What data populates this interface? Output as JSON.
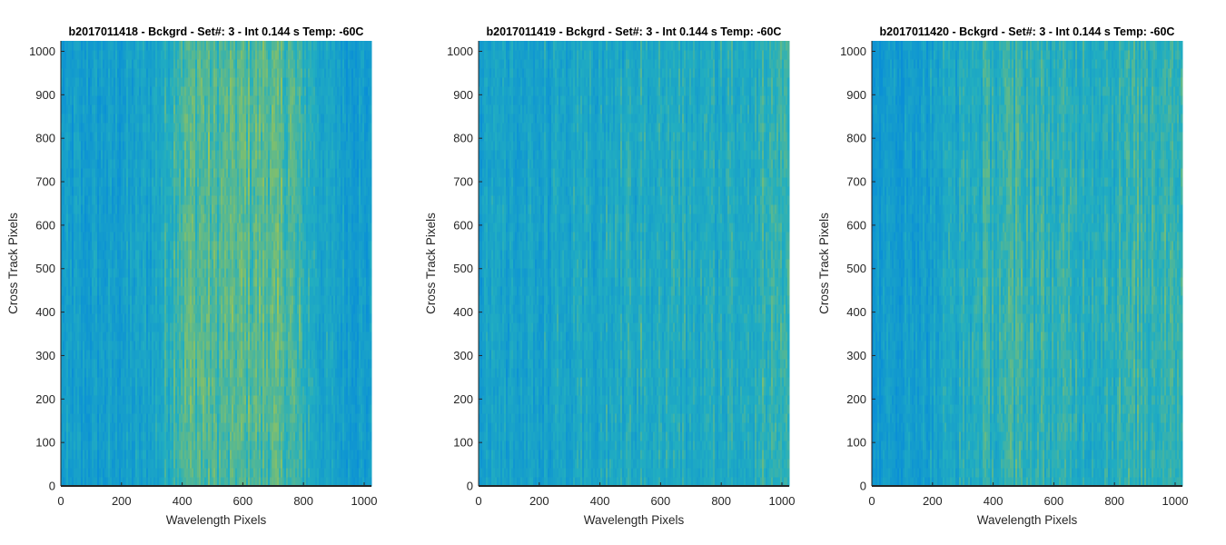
{
  "chart_data": [
    {
      "type": "heatmap",
      "title": "b2017011418 - Bckgrd - Set#: 3 - Int 0.144 s Temp: -60C",
      "xlabel": "Wavelength Pixels",
      "ylabel": "Cross Track Pixels",
      "xlim": [
        0,
        1024
      ],
      "ylim": [
        0,
        1024
      ],
      "xticks": [
        0,
        200,
        400,
        600,
        800,
        1000
      ],
      "yticks": [
        0,
        100,
        200,
        300,
        400,
        500,
        600,
        700,
        800,
        900,
        1000
      ],
      "colormap": "parula",
      "color_low": "#0a8fd6",
      "color_mid": "#22aec0",
      "color_high": "#9cc455",
      "column_intensity": {
        "x": [
          0,
          100,
          200,
          300,
          340,
          380,
          450,
          520,
          600,
          680,
          760,
          820,
          880,
          950,
          1024
        ],
        "level": [
          0.2,
          0.22,
          0.24,
          0.3,
          0.45,
          0.65,
          0.72,
          0.66,
          0.7,
          0.72,
          0.65,
          0.5,
          0.3,
          0.24,
          0.22
        ]
      },
      "row_intensity": {
        "y": [
          0,
          200,
          400,
          600,
          800,
          1024
        ],
        "level": [
          0.95,
          1.0,
          1.05,
          1.0,
          1.02,
          0.98
        ]
      }
    },
    {
      "type": "heatmap",
      "title": "b2017011419 - Bckgrd - Set#: 3 - Int 0.144 s Temp: -60C",
      "xlabel": "Wavelength Pixels",
      "ylabel": "Cross Track Pixels",
      "xlim": [
        0,
        1024
      ],
      "ylim": [
        0,
        1024
      ],
      "xticks": [
        0,
        200,
        400,
        600,
        800,
        1000
      ],
      "yticks": [
        0,
        100,
        200,
        300,
        400,
        500,
        600,
        700,
        800,
        900,
        1000
      ],
      "colormap": "parula",
      "color_low": "#0a8fd6",
      "color_mid": "#22aec0",
      "color_high": "#9cc455",
      "column_intensity": {
        "x": [
          0,
          150,
          300,
          450,
          550,
          650,
          750,
          850,
          950,
          1024
        ],
        "level": [
          0.28,
          0.3,
          0.34,
          0.4,
          0.46,
          0.44,
          0.42,
          0.46,
          0.55,
          0.6
        ]
      },
      "row_intensity": {
        "y": [
          0,
          200,
          400,
          600,
          800,
          1024
        ],
        "level": [
          0.95,
          1.0,
          1.0,
          1.02,
          1.0,
          0.98
        ]
      }
    },
    {
      "type": "heatmap",
      "title": "b2017011420 - Bckgrd - Set#: 3 - Int 0.144 s Temp: -60C",
      "xlabel": "Wavelength Pixels",
      "ylabel": "Cross Track Pixels",
      "xlim": [
        0,
        1024
      ],
      "ylim": [
        0,
        1024
      ],
      "xticks": [
        0,
        200,
        400,
        600,
        800,
        1000
      ],
      "yticks": [
        0,
        100,
        200,
        300,
        400,
        500,
        600,
        700,
        800,
        900,
        1000
      ],
      "colormap": "parula",
      "color_low": "#0a8fd6",
      "color_mid": "#22aec0",
      "color_high": "#9cc455",
      "column_intensity": {
        "x": [
          0,
          100,
          200,
          300,
          400,
          500,
          600,
          700,
          800,
          900,
          1000,
          1024
        ],
        "level": [
          0.15,
          0.2,
          0.3,
          0.45,
          0.55,
          0.58,
          0.52,
          0.5,
          0.52,
          0.58,
          0.62,
          0.6
        ]
      },
      "row_intensity": {
        "y": [
          0,
          200,
          400,
          600,
          800,
          1024
        ],
        "level": [
          0.95,
          1.0,
          1.05,
          1.0,
          1.0,
          0.97
        ]
      }
    }
  ]
}
